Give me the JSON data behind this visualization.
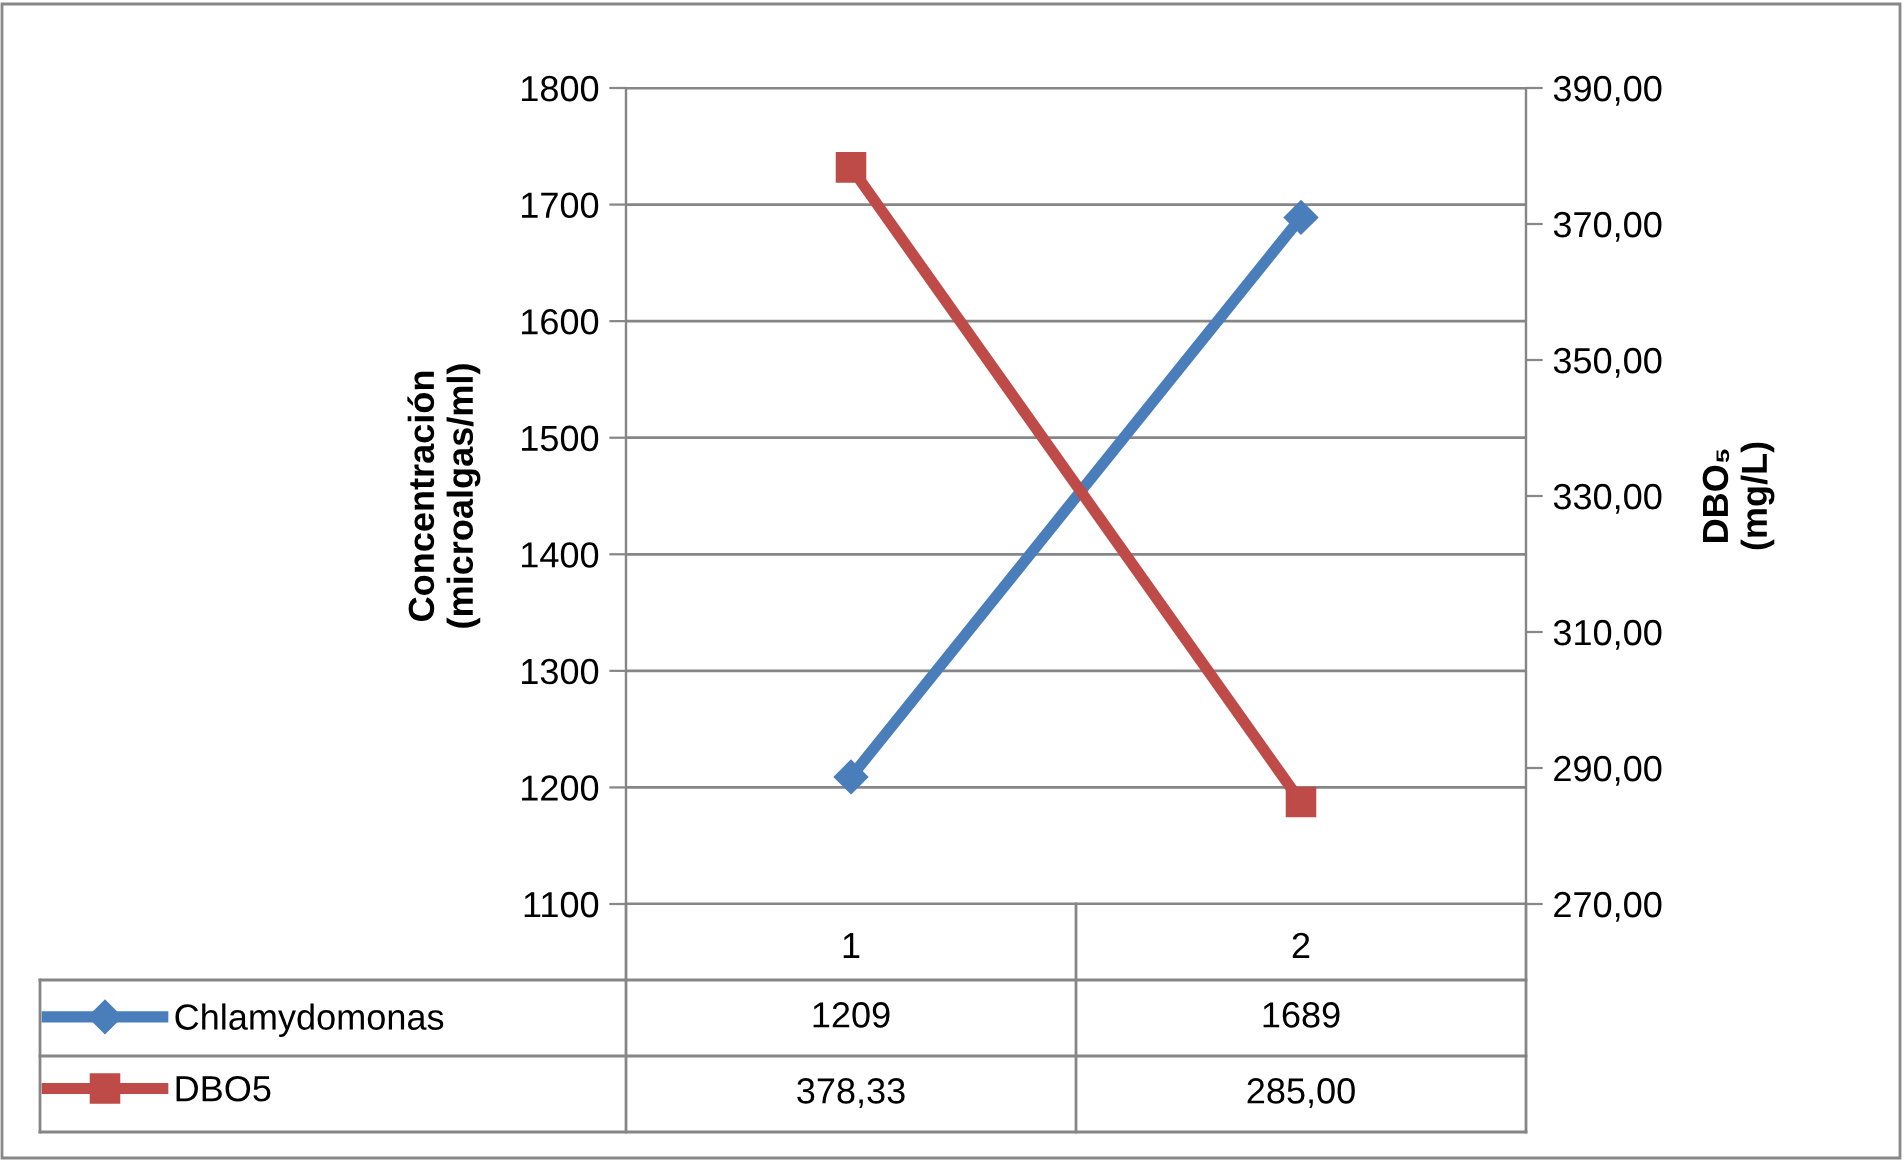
{
  "chart_data": {
    "type": "line",
    "categories": [
      "1",
      "2"
    ],
    "ylabel": "Concentración\n(microalgas/ml)",
    "y2label": "DBO₅\n(mg/L)",
    "ylim": [
      1100,
      1800
    ],
    "yticks": [
      1100,
      1200,
      1300,
      1400,
      1500,
      1600,
      1700,
      1800
    ],
    "y2lim": [
      270,
      390
    ],
    "y2ticks": [
      {
        "value": 270,
        "label": "270,00"
      },
      {
        "value": 290,
        "label": "290,00"
      },
      {
        "value": 310,
        "label": "310,00"
      },
      {
        "value": 330,
        "label": "330,00"
      },
      {
        "value": 350,
        "label": "350,00"
      },
      {
        "value": 370,
        "label": "370,00"
      },
      {
        "value": 390,
        "label": "390,00"
      }
    ],
    "grid": "y",
    "line_style": "solid",
    "legend": "bottom left",
    "series": [
      {
        "name": "Chlamydomonas",
        "color": "#4a7ebb",
        "marker": "diamond",
        "values": [
          1209,
          1689
        ],
        "value_labels": [
          "1209",
          "1689"
        ]
      },
      {
        "name": "DBO5",
        "color": "#be4b48",
        "marker": "square",
        "axis": "y2",
        "values": [
          378.33,
          285.0
        ],
        "value_labels": [
          "378,33",
          "285,00"
        ]
      }
    ]
  }
}
